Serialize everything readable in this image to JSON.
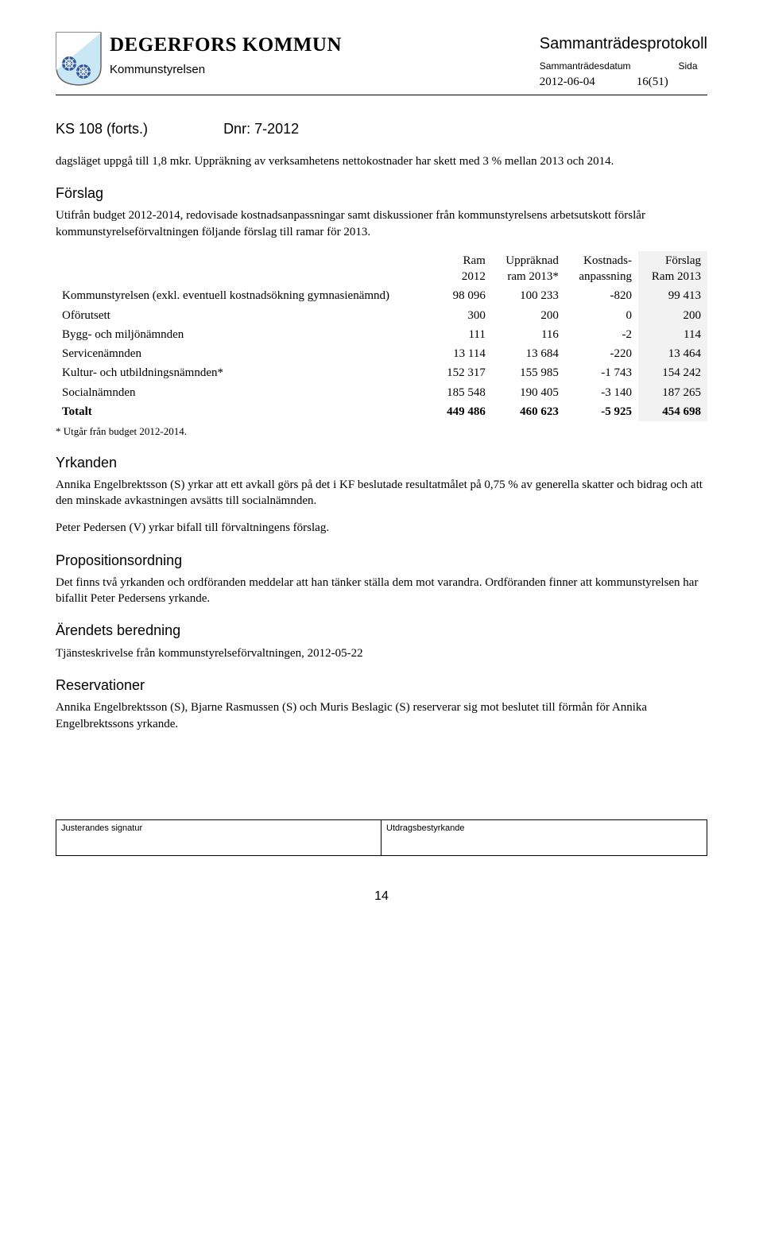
{
  "header": {
    "org_name": "DEGERFORS KOMMUN",
    "sub_org": "Kommunstyrelsen",
    "protokoll_title": "Sammanträdesprotokoll",
    "date_label": "Sammanträdesdatum",
    "page_label": "Sida",
    "date_value": "2012-06-04",
    "page_value": "16(51)"
  },
  "ks": {
    "ref": "KS 108 (forts.)",
    "dnr": "Dnr: 7-2012"
  },
  "intro1": "dagsläget uppgå till 1,8 mkr. Uppräkning av verksamhetens nettokostnader har skett med 3 % mellan 2013 och 2014.",
  "forslag_heading": "Förslag",
  "intro2": "Utifrån budget 2012-2014, redovisade kostnadsanpassningar samt diskussioner från kommunstyrelsens arbetsutskott förslår kommunstyrelseförvaltningen följande förslag till ramar för 2013.",
  "table": {
    "columns": [
      "",
      "Ram 2012",
      "Uppräknad ram 2013*",
      "Kostnads- anpassning",
      "Förslag Ram 2013"
    ],
    "col1_line1": "Ram",
    "col1_line2": "2012",
    "col2_line1": "Uppräknad",
    "col2_line2": "ram 2013*",
    "col3_line1": "Kostnads-",
    "col3_line2": "anpassning",
    "col4_line1": "Förslag",
    "col4_line2": "Ram 2013",
    "rows": [
      {
        "label": "Kommunstyrelsen (exkl. eventuell kostnadsökning gymnasienämnd)",
        "c1": "98 096",
        "c2": "100 233",
        "c3": "-820",
        "c4": "99 413"
      },
      {
        "label": "Oförutsett",
        "c1": "300",
        "c2": "200",
        "c3": "0",
        "c4": "200"
      },
      {
        "label": "Bygg- och miljönämnden",
        "c1": "111",
        "c2": "116",
        "c3": "-2",
        "c4": "114"
      },
      {
        "label": "Servicenämnden",
        "c1": "13 114",
        "c2": "13 684",
        "c3": "-220",
        "c4": "13 464"
      },
      {
        "label": "Kultur- och utbildningsnämnden*",
        "c1": "152 317",
        "c2": "155 985",
        "c3": "-1 743",
        "c4": "154 242"
      },
      {
        "label": "Socialnämnden",
        "c1": "185 548",
        "c2": "190 405",
        "c3": "-3 140",
        "c4": "187 265"
      }
    ],
    "total": {
      "label": "Totalt",
      "c1": "449 486",
      "c2": "460 623",
      "c3": "-5 925",
      "c4": "454 698"
    },
    "footnote": "* Utgår från budget 2012-2014.",
    "forslag_bg": "#f2f2f2"
  },
  "yrkanden": {
    "heading": "Yrkanden",
    "p1": "Annika Engelbrektsson (S) yrkar att ett avkall görs på det i KF beslutade resultatmålet på 0,75 % av generella skatter och bidrag och  att den minskade avkastningen avsätts till socialnämnden.",
    "p2": "Peter Pedersen (V) yrkar bifall till förvaltningens förslag."
  },
  "prop": {
    "heading": "Propositionsordning",
    "p1": "Det finns två yrkanden och ordföranden meddelar att han tänker ställa dem mot varandra. Ordföranden finner att kommunstyrelsen har bifallit Peter Pedersens yrkande."
  },
  "beredning": {
    "heading": "Ärendets beredning",
    "p1": "Tjänsteskrivelse från kommunstyrelseförvaltningen, 2012-05-22"
  },
  "reserv": {
    "heading": "Reservationer",
    "p1": "Annika Engelbrektsson (S), Bjarne Rasmussen (S) och Muris Beslagic (S) reserverar sig mot beslutet till förmån för Annika Engelbrektssons yrkande."
  },
  "footer": {
    "sig": "Justerandes signatur",
    "utd": "Utdragsbestyrkande"
  },
  "page_number": "14"
}
